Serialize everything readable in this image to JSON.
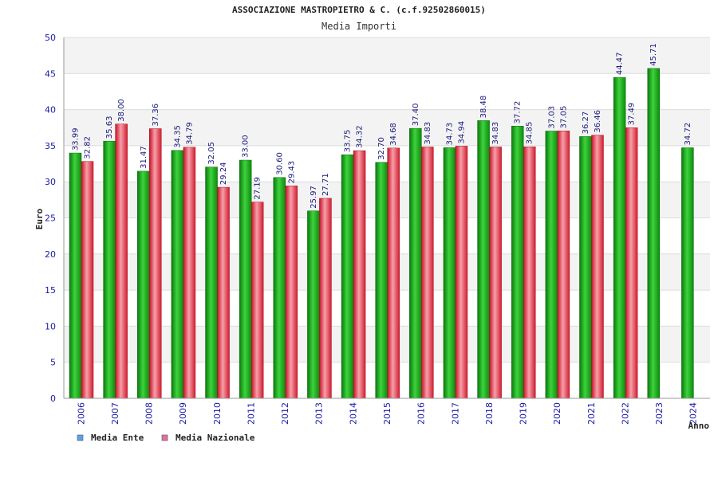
{
  "chart_data": {
    "type": "bar",
    "title": "ASSOCIAZIONE MASTROPIETRO & C. (c.f.92502860015)",
    "subtitle": "Media Importi",
    "xlabel": "Anno",
    "ylabel": "Euro",
    "ylim": [
      0,
      50
    ],
    "yticks": [
      0,
      5,
      10,
      15,
      20,
      25,
      30,
      35,
      40,
      45,
      50
    ],
    "categories": [
      "2006",
      "2007",
      "2008",
      "2009",
      "2010",
      "2011",
      "2012",
      "2013",
      "2014",
      "2015",
      "2016",
      "2017",
      "2018",
      "2019",
      "2020",
      "2021",
      "2022",
      "2023",
      "2024"
    ],
    "series": [
      {
        "name": "Media Ente",
        "color": "#1aa81a",
        "values": [
          33.99,
          35.63,
          31.47,
          34.35,
          32.05,
          33.0,
          30.6,
          25.97,
          33.75,
          32.7,
          37.4,
          34.73,
          38.48,
          37.72,
          37.03,
          36.27,
          44.47,
          45.71,
          34.72
        ]
      },
      {
        "name": "Media Nazionale",
        "color": "#e0303a",
        "values": [
          32.82,
          38.0,
          37.36,
          34.79,
          29.24,
          27.19,
          29.43,
          27.71,
          34.32,
          34.68,
          34.83,
          34.94,
          34.83,
          34.85,
          37.05,
          36.46,
          37.49,
          null,
          null
        ]
      }
    ],
    "legend": [
      {
        "label": "Media Ente",
        "swatch": "#5aa0f0"
      },
      {
        "label": "Media Nazionale",
        "swatch": "#e070a0"
      }
    ],
    "legend_position": "bottom-left",
    "grid": true
  }
}
